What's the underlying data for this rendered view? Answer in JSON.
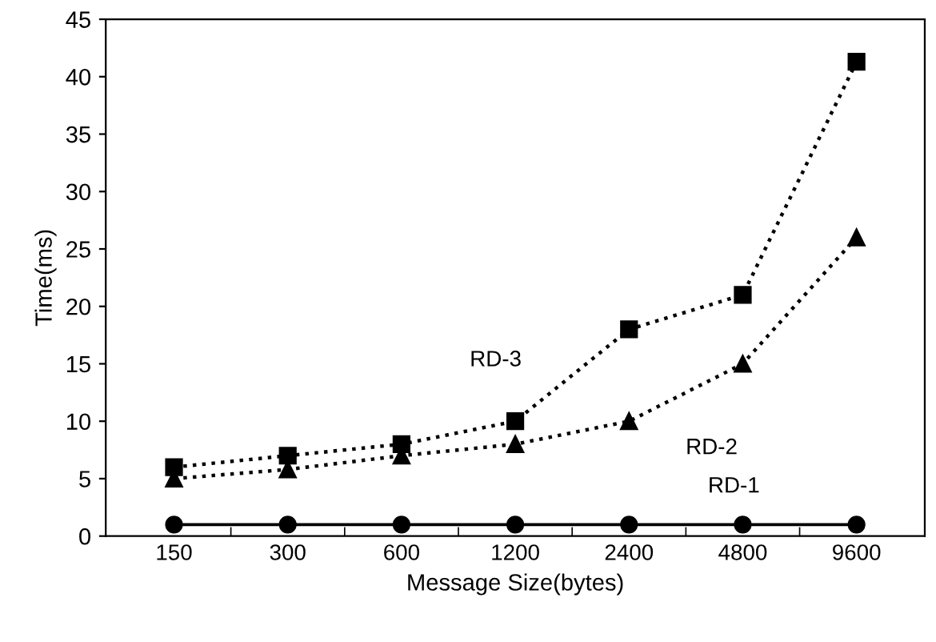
{
  "chart_data": {
    "type": "line",
    "xlabel": "Message Size(bytes)",
    "ylabel": "Time(ms)",
    "categories": [
      "150",
      "300",
      "600",
      "1200",
      "2400",
      "4800",
      "9600"
    ],
    "ylim": [
      0,
      45
    ],
    "yticks": [
      0,
      5,
      10,
      15,
      20,
      25,
      30,
      35,
      40,
      45
    ],
    "grid": false,
    "legend": false,
    "series": [
      {
        "name": "RD-3",
        "color": "#000000",
        "marker": "square",
        "line_style": "dotted",
        "values": [
          6,
          7,
          8,
          10,
          18,
          21,
          41.3
        ]
      },
      {
        "name": "RD-2",
        "color": "#000000",
        "marker": "triangle",
        "line_style": "dotted",
        "values": [
          5,
          5.8,
          7,
          8,
          10,
          15,
          26
        ]
      },
      {
        "name": "RD-1",
        "color": "#000000",
        "marker": "circle",
        "line_style": "solid",
        "values": [
          1,
          1,
          1,
          1,
          1,
          1,
          1
        ]
      }
    ]
  }
}
